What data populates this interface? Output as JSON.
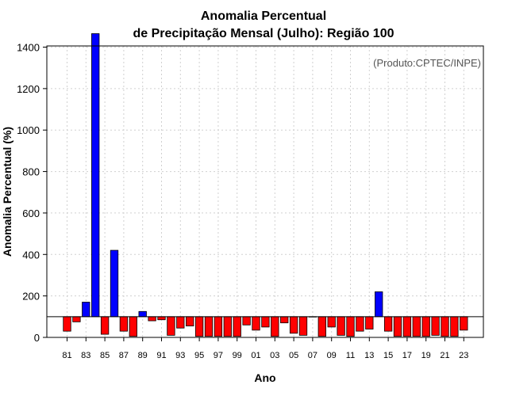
{
  "chart_data": {
    "type": "bar",
    "title_line1": "Anomalia Percentual",
    "title_line2": "de Precipitação Mensal (Julho): Região 100",
    "xlabel": "Ano",
    "ylabel": "Anomalia Percentual (%)",
    "credit": "(Produto:CPTEC/INPE)",
    "baseline": 100,
    "ylim": [
      0,
      1450
    ],
    "yticks": [
      0,
      200,
      400,
      600,
      800,
      1000,
      1200,
      1400
    ],
    "grid": true,
    "colors": {
      "above": "#0000ff",
      "below": "#ff0000",
      "outline": "#000000",
      "grid": "#d0d0d0"
    },
    "years": [
      "81",
      "82",
      "83",
      "84",
      "85",
      "86",
      "87",
      "88",
      "89",
      "90",
      "91",
      "92",
      "93",
      "94",
      "95",
      "96",
      "97",
      "98",
      "99",
      "00",
      "01",
      "02",
      "03",
      "04",
      "05",
      "06",
      "07",
      "08",
      "09",
      "10",
      "11",
      "12",
      "13",
      "14",
      "15",
      "16",
      "17",
      "18",
      "19",
      "20",
      "21",
      "22",
      "23"
    ],
    "tick_labels": [
      "81",
      "83",
      "85",
      "87",
      "89",
      "91",
      "93",
      "95",
      "97",
      "99",
      "01",
      "03",
      "05",
      "07",
      "09",
      "11",
      "13",
      "15",
      "17",
      "19",
      "21",
      "23"
    ],
    "values": [
      30,
      75,
      170,
      1465,
      15,
      420,
      30,
      5,
      125,
      80,
      85,
      10,
      45,
      55,
      5,
      5,
      5,
      5,
      5,
      60,
      35,
      50,
      5,
      70,
      20,
      10,
      100,
      5,
      50,
      10,
      5,
      30,
      40,
      220,
      30,
      5,
      5,
      5,
      5,
      10,
      5,
      5,
      35
    ]
  }
}
